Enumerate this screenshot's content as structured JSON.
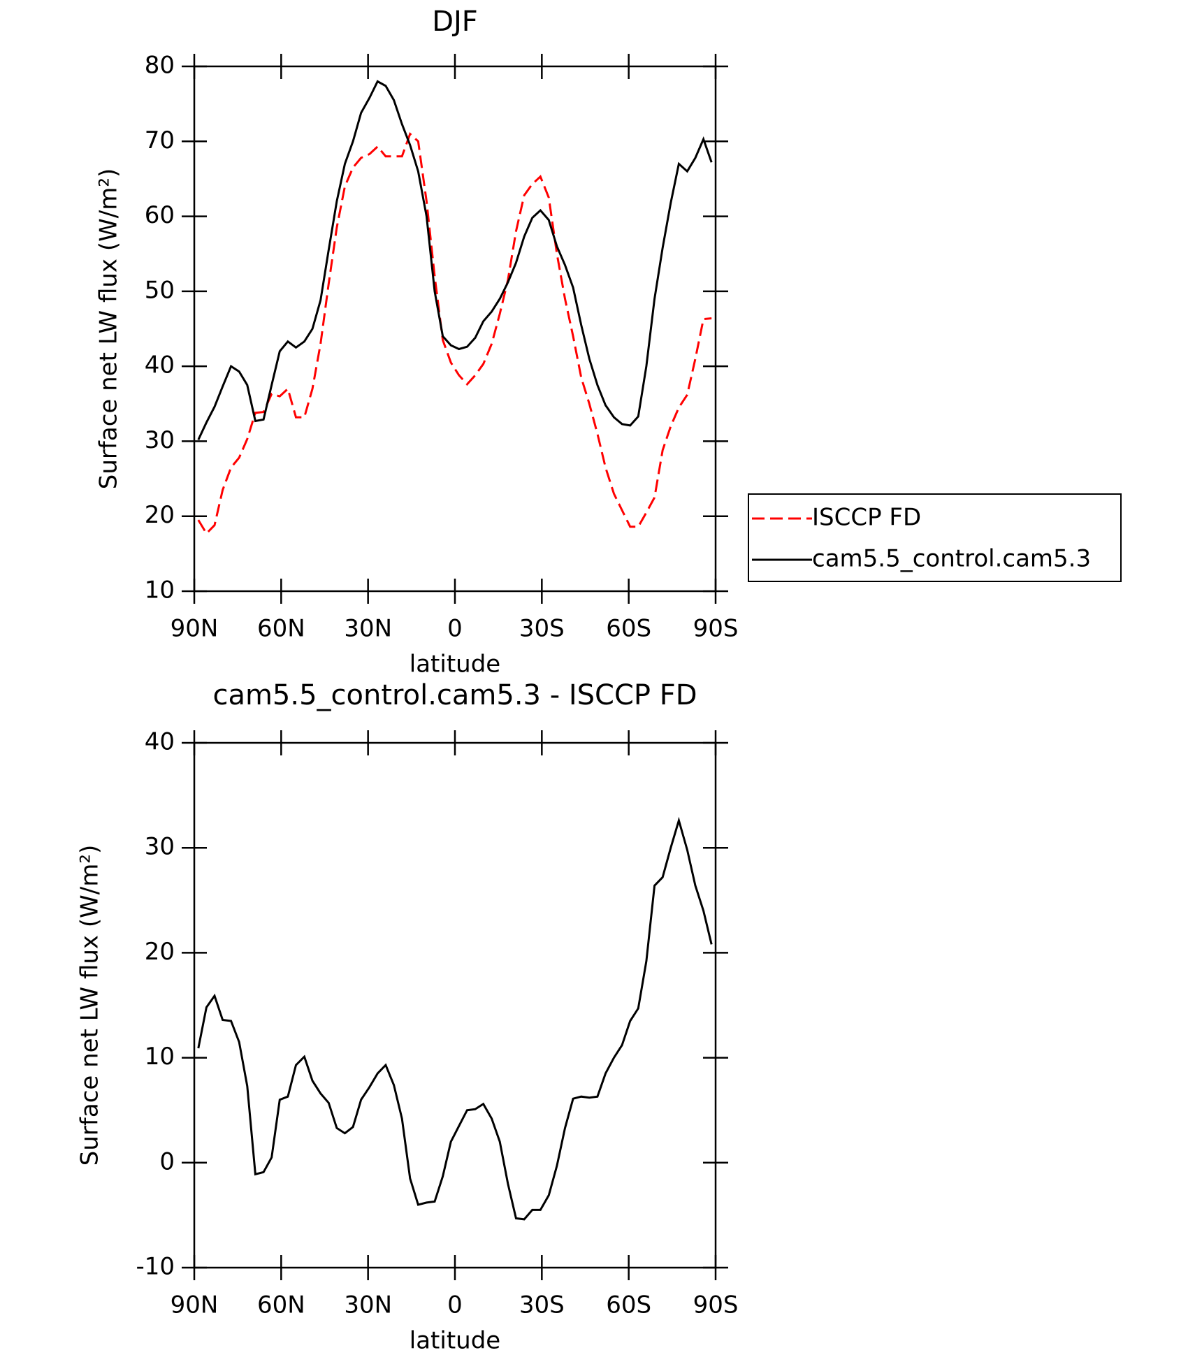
{
  "chart_data": [
    {
      "type": "line",
      "title": "DJF",
      "x_label": "latitude",
      "y_label": "Surface net LW flux (W/m²)",
      "x": [
        88.6,
        85.8,
        83.0,
        80.2,
        77.3,
        74.5,
        71.7,
        68.9,
        66.1,
        63.3,
        60.5,
        57.7,
        54.9,
        52.0,
        49.2,
        46.4,
        43.6,
        40.8,
        38.0,
        35.2,
        32.4,
        29.5,
        26.7,
        23.9,
        21.1,
        18.3,
        15.5,
        12.7,
        9.8,
        7.0,
        4.2,
        1.4,
        -1.4,
        -4.2,
        -7.0,
        -9.8,
        -12.7,
        -15.5,
        -18.3,
        -21.1,
        -23.9,
        -26.7,
        -29.5,
        -32.4,
        -35.2,
        -38.0,
        -40.8,
        -43.6,
        -46.4,
        -49.2,
        -52.0,
        -54.9,
        -57.7,
        -60.5,
        -63.3,
        -66.1,
        -68.9,
        -71.7,
        -74.5,
        -77.3,
        -80.2,
        -83.0,
        -85.8,
        -88.6
      ],
      "series": [
        {
          "name": "ISCCP FD",
          "color": "#ff0000",
          "line_style": "dashed",
          "values": [
            19.5,
            17.7,
            18.8,
            23.5,
            26.5,
            27.8,
            30.3,
            33.8,
            33.9,
            36.3,
            36.0,
            37.0,
            33.2,
            33.2,
            37.0,
            43.0,
            51.0,
            58.5,
            64.0,
            66.5,
            67.8,
            68.3,
            69.3,
            68.0,
            68.0,
            68.0,
            71.0,
            70.0,
            62.0,
            52.0,
            43.5,
            40.5,
            38.8,
            37.6,
            38.8,
            40.3,
            43.0,
            47.0,
            51.5,
            58.0,
            62.8,
            64.3,
            65.3,
            62.5,
            55.0,
            49.0,
            44.0,
            38.5,
            35.0,
            31.0,
            26.5,
            23.0,
            20.8,
            18.6,
            18.6,
            20.5,
            22.5,
            28.8,
            32.0,
            34.5,
            36.2,
            41.0,
            46.3,
            46.4
          ]
        },
        {
          "name": "cam5.5_control.cam5.3",
          "color": "#000000",
          "line_style": "solid",
          "values": [
            30.2,
            32.5,
            34.6,
            37.3,
            40.0,
            39.3,
            37.5,
            32.7,
            32.9,
            37.5,
            42.0,
            43.3,
            42.5,
            43.3,
            45.0,
            48.8,
            55.5,
            62.0,
            67.0,
            70.0,
            73.8,
            75.8,
            78.0,
            77.4,
            75.5,
            72.3,
            69.5,
            66.0,
            60.0,
            50.0,
            44.0,
            42.8,
            42.3,
            42.6,
            43.8,
            46.0,
            47.3,
            49.0,
            51.2,
            53.8,
            57.3,
            59.8,
            60.8,
            59.5,
            56.0,
            53.5,
            50.5,
            45.5,
            41.0,
            37.5,
            34.8,
            33.2,
            32.3,
            32.1,
            33.3,
            40.0,
            49.0,
            55.8,
            61.8,
            67.0,
            66.0,
            67.8,
            70.3,
            67.2
          ]
        }
      ],
      "xlim": [
        90,
        -90
      ],
      "xticks": [
        {
          "value": 90,
          "label": "90N"
        },
        {
          "value": 60,
          "label": "60N"
        },
        {
          "value": 30,
          "label": "30N"
        },
        0,
        {
          "value": -30,
          "label": "30S"
        },
        {
          "value": -60,
          "label": "60S"
        },
        {
          "value": -90,
          "label": "90S"
        }
      ],
      "ylim": [
        10,
        80
      ],
      "yticks": [
        10,
        20,
        30,
        40,
        50,
        60,
        70,
        80
      ],
      "legend": "right"
    },
    {
      "type": "line",
      "title": "cam5.5_control.cam5.3 - ISCCP FD",
      "x_label": "latitude",
      "y_label": "Surface net LW flux (W/m²)",
      "x": [
        88.6,
        85.8,
        83.0,
        80.2,
        77.3,
        74.5,
        71.7,
        68.9,
        66.1,
        63.3,
        60.5,
        57.7,
        54.9,
        52.0,
        49.2,
        46.4,
        43.6,
        40.8,
        38.0,
        35.2,
        32.4,
        29.5,
        26.7,
        23.9,
        21.1,
        18.3,
        15.5,
        12.7,
        9.8,
        7.0,
        4.2,
        1.4,
        -1.4,
        -4.2,
        -7.0,
        -9.8,
        -12.7,
        -15.5,
        -18.3,
        -21.1,
        -23.9,
        -26.7,
        -29.5,
        -32.4,
        -35.2,
        -38.0,
        -40.8,
        -43.6,
        -46.4,
        -49.2,
        -52.0,
        -54.9,
        -57.7,
        -60.5,
        -63.3,
        -66.1,
        -68.9,
        -71.7,
        -74.5,
        -77.3,
        -80.2,
        -83.0,
        -85.8,
        -88.6
      ],
      "series": [
        {
          "color": "#000000",
          "line_style": "solid",
          "values": [
            10.9,
            14.8,
            15.9,
            13.6,
            13.5,
            11.5,
            7.3,
            -1.1,
            -0.9,
            0.5,
            6.0,
            6.3,
            9.3,
            10.1,
            7.8,
            6.6,
            5.7,
            3.3,
            2.8,
            3.4,
            6.0,
            7.2,
            8.5,
            9.3,
            7.4,
            4.2,
            -1.5,
            -4.0,
            -3.8,
            -3.7,
            -1.3,
            2.0,
            3.5,
            5.0,
            5.1,
            5.6,
            4.2,
            2.0,
            -2.0,
            -5.3,
            -5.4,
            -4.5,
            -4.5,
            -3.1,
            -0.3,
            3.3,
            6.1,
            6.3,
            6.2,
            6.3,
            8.5,
            10.0,
            11.2,
            13.5,
            14.7,
            19.2,
            26.4,
            27.2,
            30.0,
            32.6,
            29.8,
            26.4,
            24.0,
            20.8
          ]
        }
      ],
      "xlim": [
        90,
        -90
      ],
      "xticks": [
        {
          "value": 90,
          "label": "90N"
        },
        {
          "value": 60,
          "label": "60N"
        },
        {
          "value": 30,
          "label": "30N"
        },
        0,
        {
          "value": -30,
          "label": "30S"
        },
        {
          "value": -60,
          "label": "60S"
        },
        {
          "value": -90,
          "label": "90S"
        }
      ],
      "ylim": [
        -10,
        40
      ],
      "yticks": [
        -10,
        0,
        10,
        20,
        30,
        40
      ]
    }
  ]
}
